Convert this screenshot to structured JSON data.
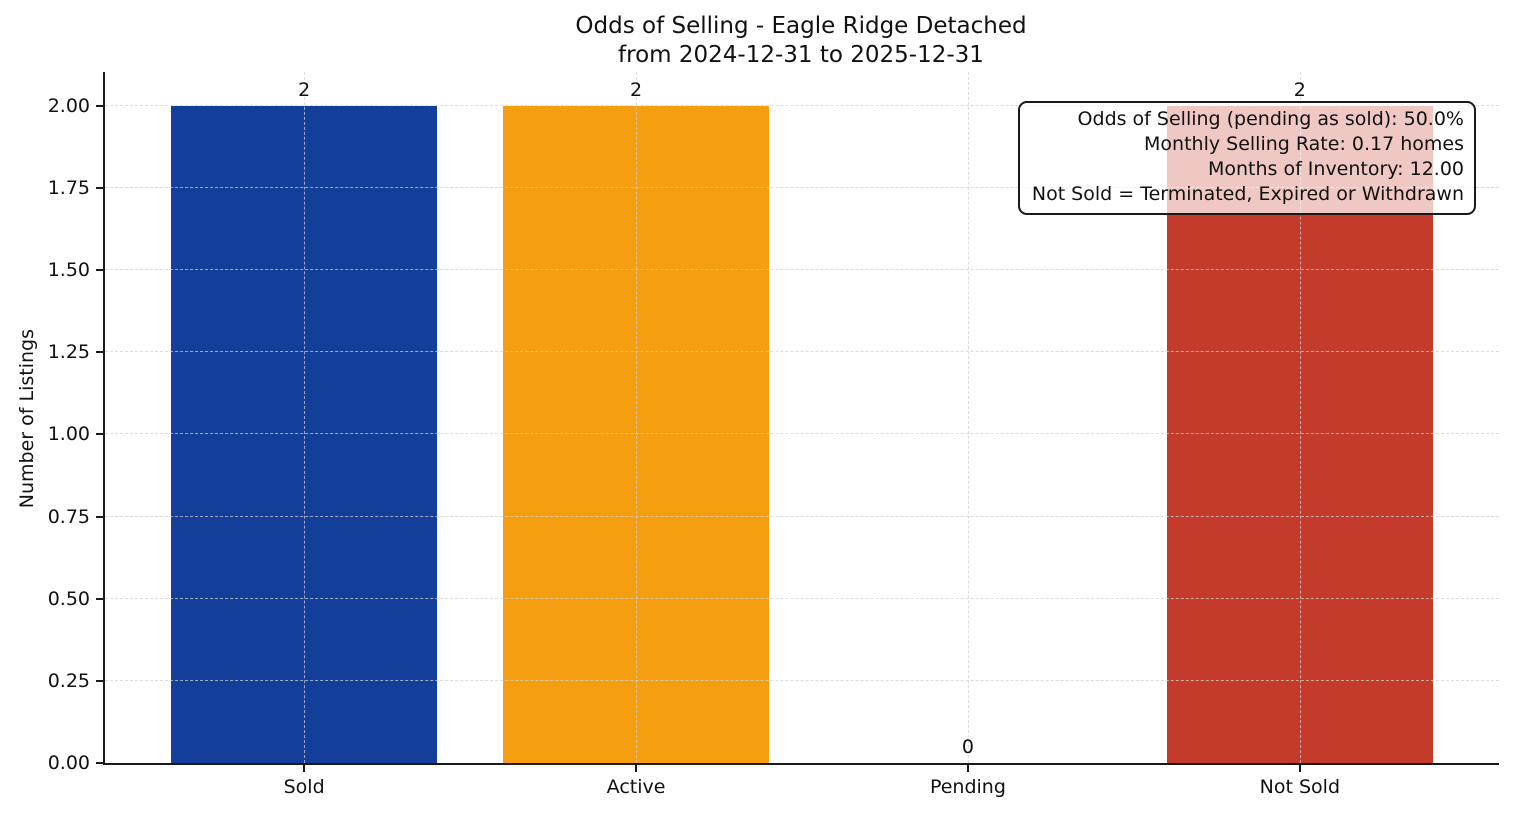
{
  "chart_data": {
    "type": "bar",
    "title": "Odds of Selling - Eagle Ridge Detached",
    "subtitle": "from 2024-12-31 to 2025-12-31",
    "xlabel": "",
    "ylabel": "Number of Listings",
    "categories": [
      "Sold",
      "Active",
      "Pending",
      "Not Sold"
    ],
    "values": [
      2,
      2,
      0,
      2
    ],
    "value_labels": [
      "2",
      "2",
      "0",
      "2"
    ],
    "bar_colors": [
      "#133E9A",
      "#F49E10",
      null,
      "#C53B2B"
    ],
    "bar_width_fraction": 0.8,
    "ylim": [
      0,
      2.103
    ],
    "yticks": [
      0.0,
      0.25,
      0.5,
      0.75,
      1.0,
      1.25,
      1.5,
      1.75,
      2.0
    ],
    "ytick_labels": [
      "0.00",
      "0.25",
      "0.50",
      "0.75",
      "1.00",
      "1.25",
      "1.50",
      "1.75",
      "2.00"
    ],
    "grid": {
      "horizontal": true,
      "vertical": true,
      "style": "dashed",
      "color": "#d0d0d0",
      "above_bars": true
    },
    "legend": null,
    "annotation": {
      "position": "top-right",
      "border_color": "#1a1a1a",
      "background": "rgba(255,255,255,0.72)",
      "lines": [
        "Odds of Selling (pending as sold): 50.0%",
        "Monthly Selling Rate: 0.17 homes",
        "Months of Inventory: 12.00",
        "Not Sold = Terminated, Expired or Withdrawn"
      ]
    },
    "axis_color": "#1a1a1a",
    "background_color": "#ffffff"
  }
}
